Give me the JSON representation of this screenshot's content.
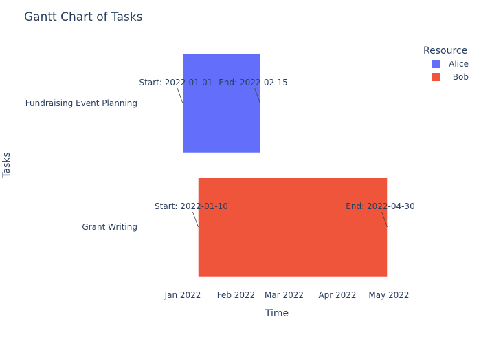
{
  "chart_data": {
    "type": "gantt",
    "title": "Gantt Chart of Tasks",
    "xlabel": "Time",
    "ylabel": "Tasks",
    "x_ticks": [
      {
        "date": "2022-01-01",
        "label": "Jan 2022"
      },
      {
        "date": "2022-02-01",
        "label": "Feb 2022"
      },
      {
        "date": "2022-03-01",
        "label": "Mar 2022"
      },
      {
        "date": "2022-04-01",
        "label": "Apr 2022"
      },
      {
        "date": "2022-05-01",
        "label": "May 2022"
      }
    ],
    "categories": [
      "Fundraising Event Planning",
      "Grant Writing"
    ],
    "tasks": [
      {
        "task": "Fundraising Event Planning",
        "resource": "Alice",
        "start": "2022-01-01",
        "end": "2022-02-15",
        "start_label": "Start: 2022-01-01",
        "end_label": "End: 2022-02-15"
      },
      {
        "task": "Grant Writing",
        "resource": "Bob",
        "start": "2022-01-10",
        "end": "2022-04-30",
        "start_label": "Start: 2022-01-10",
        "end_label": "End: 2022-04-30"
      }
    ],
    "legend": {
      "title": "Resource",
      "position": "top-right",
      "items": [
        {
          "name": "Alice",
          "color": "#636efa"
        },
        {
          "name": "Bob",
          "color": "#ef553b"
        }
      ]
    },
    "grid": false
  }
}
